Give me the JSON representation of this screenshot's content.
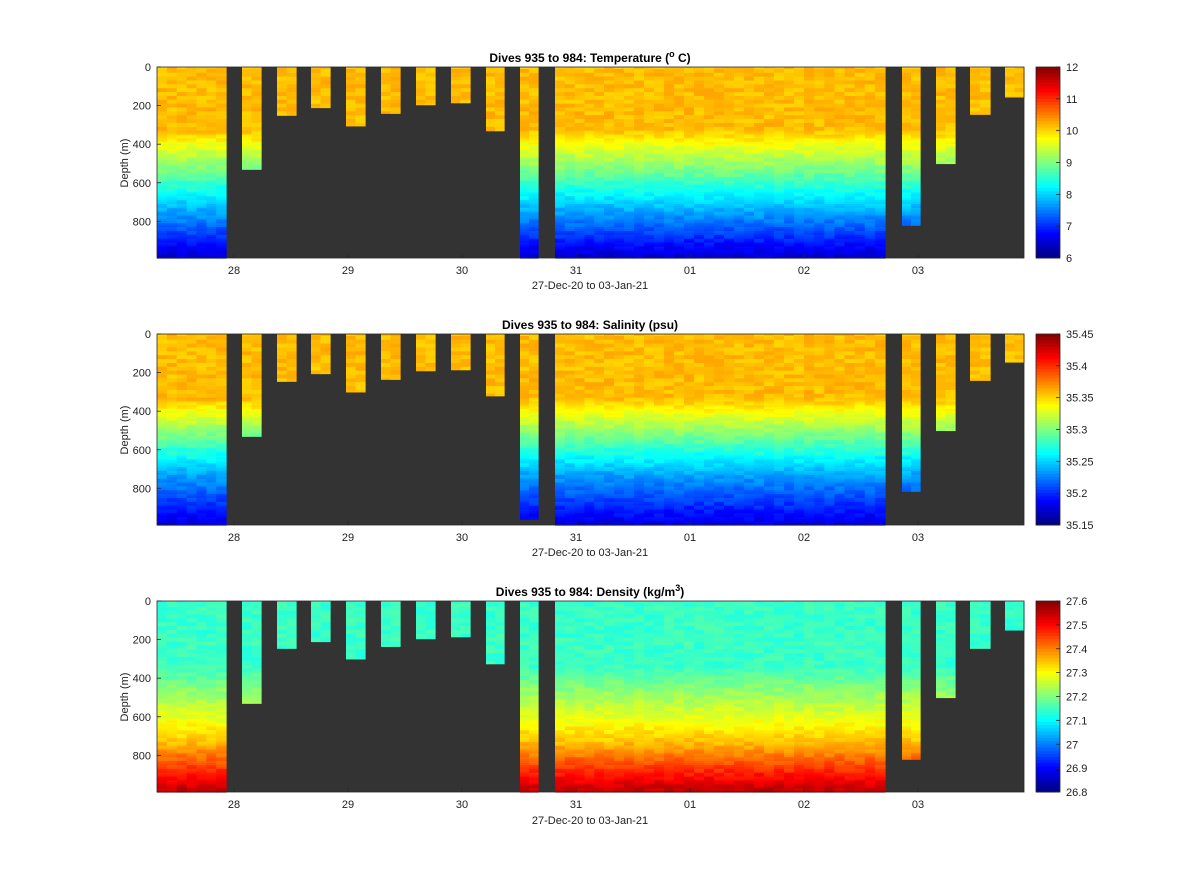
{
  "chart_data": [
    {
      "type": "heatmap",
      "title_main": "Dives 935 to 984: Temperature (",
      "title_sup": "o",
      "title_tail": " C)",
      "xlabel": "27-Dec-20 to 03-Jan-21",
      "ylabel": "Depth (m)",
      "x_ticks": [
        "28",
        "29",
        "30",
        "31",
        "01",
        "02",
        "03"
      ],
      "y_ticks": [
        "0",
        "200",
        "400",
        "600",
        "800"
      ],
      "ylim": [
        0,
        990
      ],
      "colorbar_ticks": [
        "12",
        "11",
        "10",
        "9",
        "8",
        "7",
        "6"
      ],
      "clim": [
        6,
        12
      ],
      "profile_max_depth_m": [
        990,
        530,
        250,
        210,
        305,
        240,
        195,
        185,
        330,
        990,
        990,
        990,
        990,
        990,
        990,
        990,
        820,
        500,
        245,
        155
      ],
      "mode": "temperature"
    },
    {
      "type": "heatmap",
      "title_main": "Dives 935 to 984: Salinity (psu)",
      "title_sup": "",
      "title_tail": "",
      "xlabel": "27-Dec-20 to 03-Jan-21",
      "ylabel": "Depth (m)",
      "x_ticks": [
        "28",
        "29",
        "30",
        "31",
        "01",
        "02",
        "03"
      ],
      "y_ticks": [
        "0",
        "200",
        "400",
        "600",
        "800"
      ],
      "ylim": [
        0,
        990
      ],
      "colorbar_ticks": [
        "35.45",
        "35.4",
        "35.35",
        "35.3",
        "35.25",
        "35.2",
        "35.15"
      ],
      "clim": [
        35.15,
        35.45
      ],
      "profile_max_depth_m": [
        990,
        530,
        245,
        205,
        300,
        235,
        190,
        185,
        320,
        960,
        990,
        990,
        990,
        990,
        990,
        990,
        815,
        500,
        240,
        145
      ],
      "mode": "salinity"
    },
    {
      "type": "heatmap",
      "title_main": "Dives 935 to 984: Density (kg/m",
      "title_sup": "3",
      "title_tail": ")",
      "xlabel": "27-Dec-20 to 03-Jan-21",
      "ylabel": "Depth (m)",
      "x_ticks": [
        "28",
        "29",
        "30",
        "31",
        "01",
        "02",
        "03"
      ],
      "y_ticks": [
        "0",
        "200",
        "400",
        "600",
        "800"
      ],
      "ylim": [
        0,
        990
      ],
      "colorbar_ticks": [
        "27.6",
        "27.5",
        "27.4",
        "27.3",
        "27.2",
        "27.1",
        "27",
        "26.9",
        "26.8"
      ],
      "clim": [
        26.8,
        27.6
      ],
      "profile_max_depth_m": [
        990,
        530,
        245,
        210,
        300,
        235,
        195,
        185,
        325,
        990,
        990,
        990,
        990,
        990,
        990,
        990,
        820,
        500,
        245,
        150
      ],
      "mode": "density"
    }
  ]
}
